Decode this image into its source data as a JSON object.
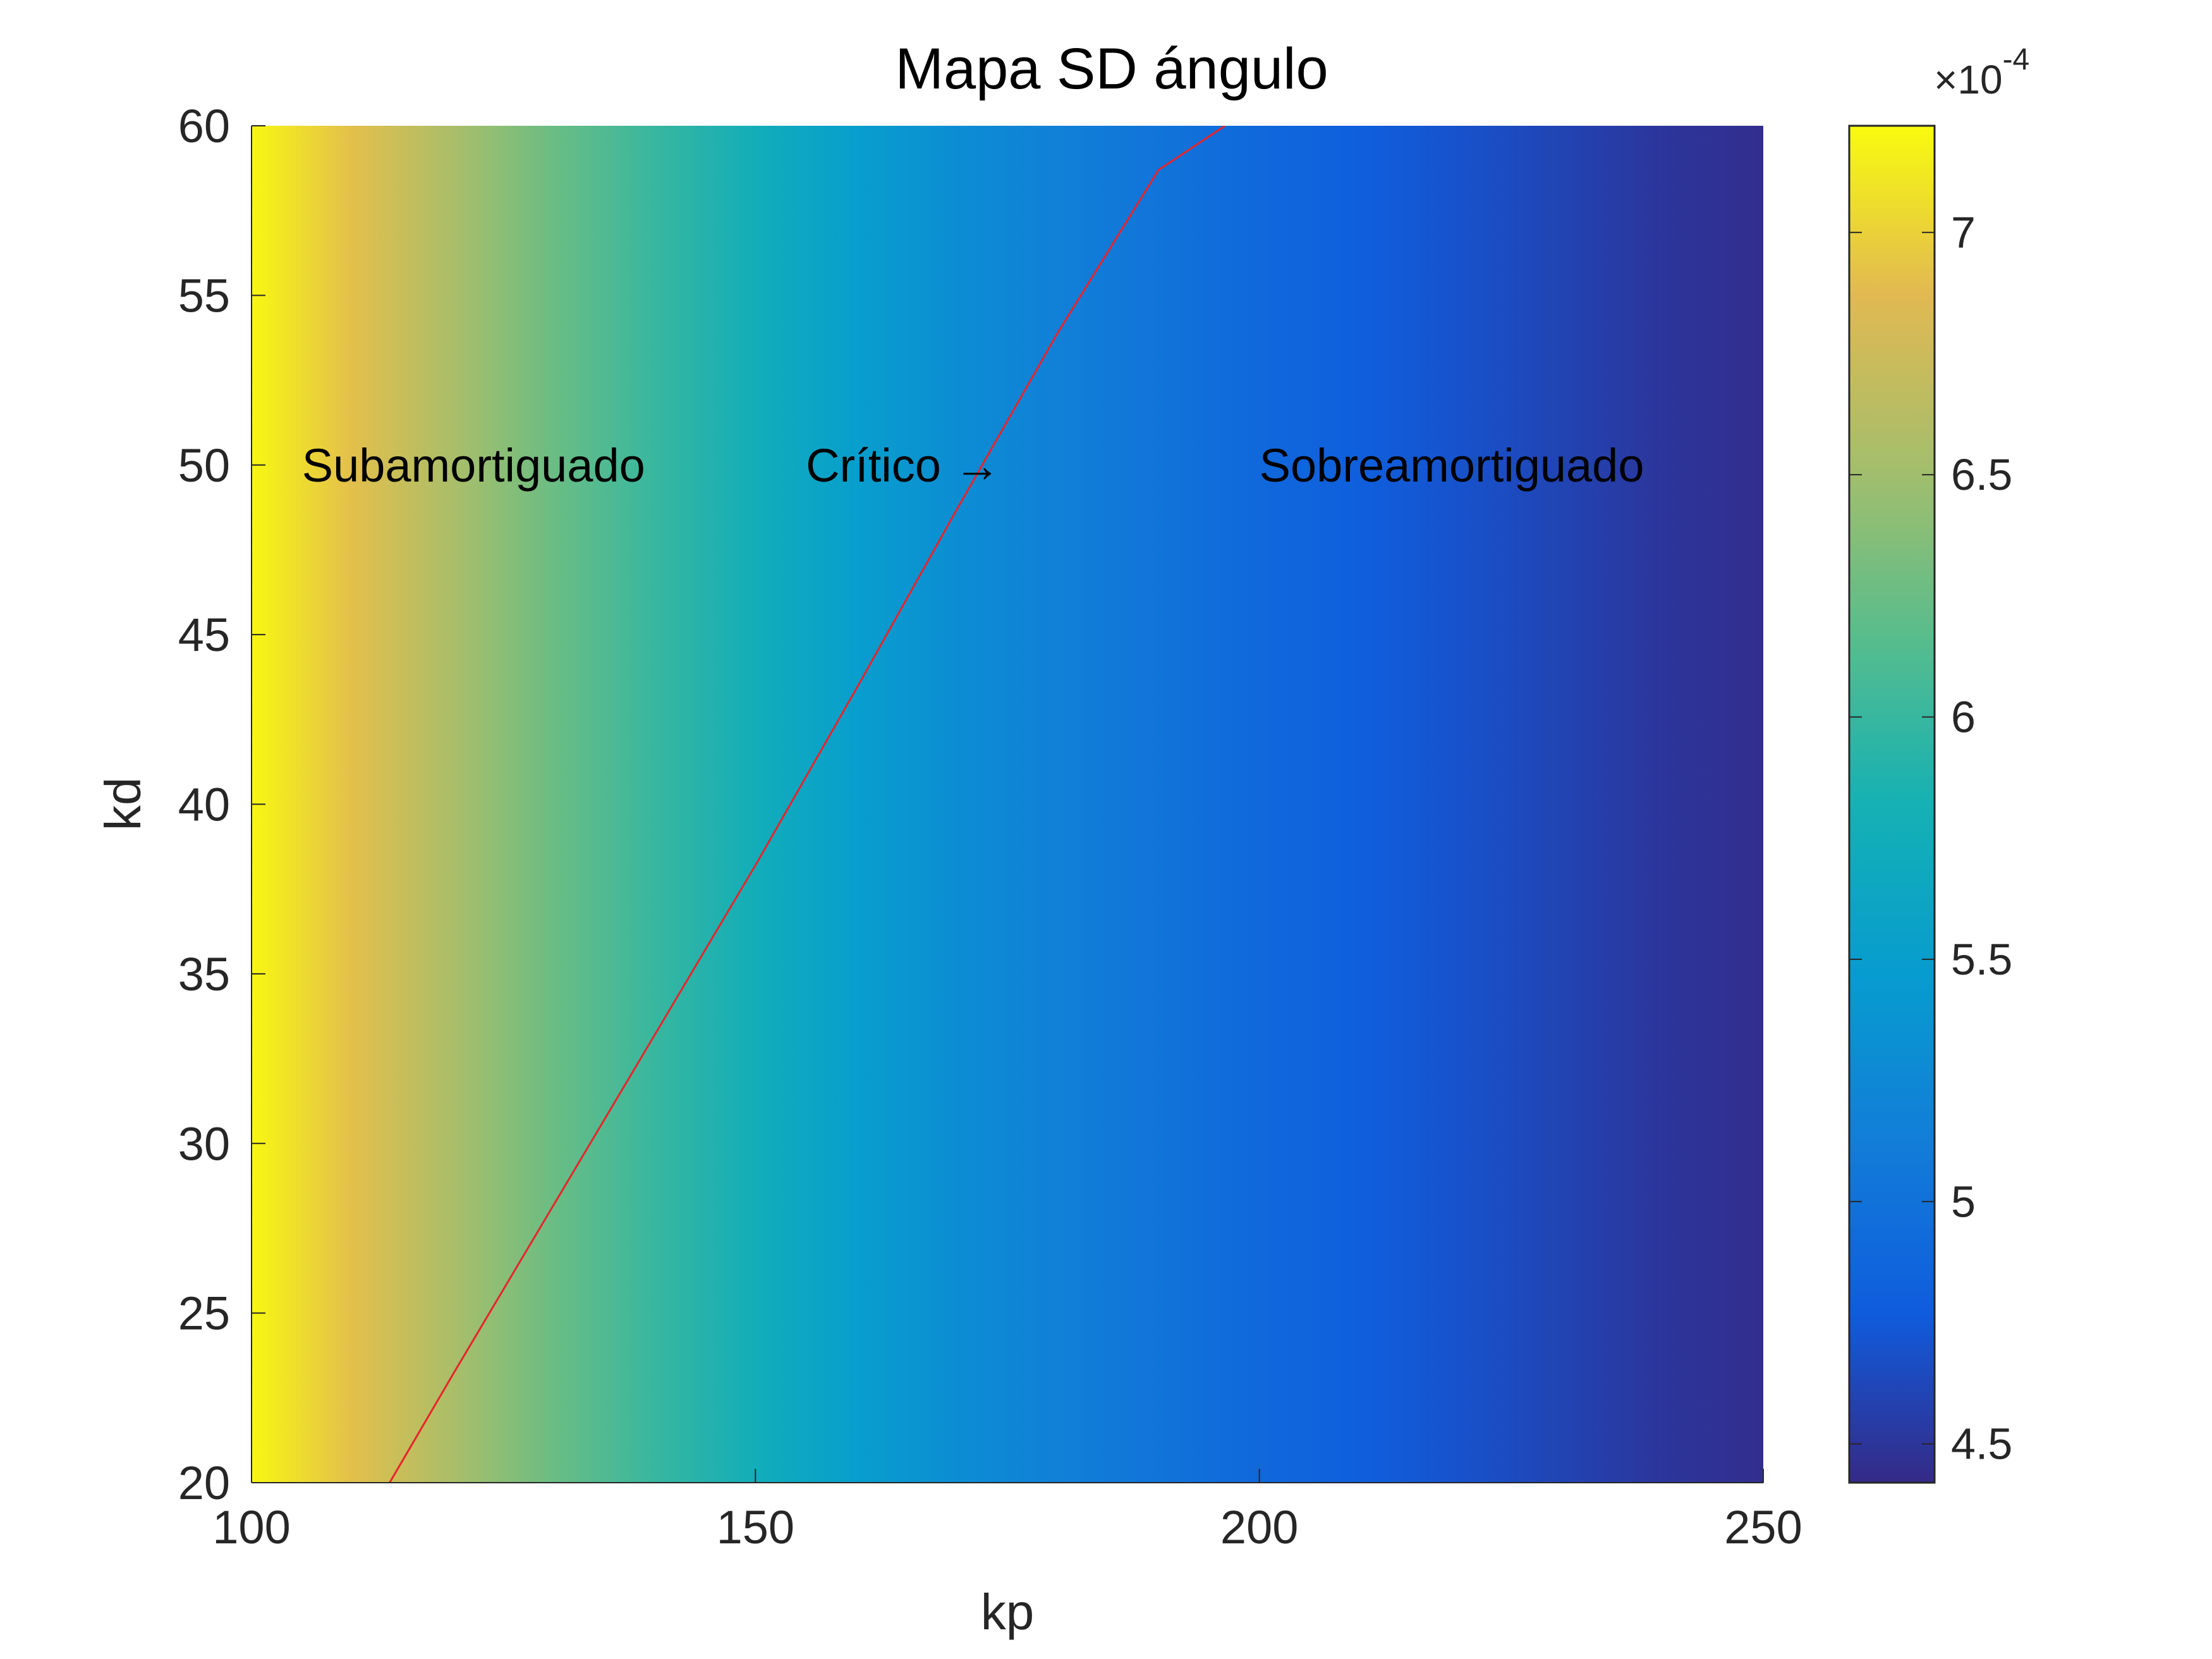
{
  "chart_data": {
    "type": "heatmap",
    "title": "Mapa SD ángulo",
    "xlabel": "kp",
    "ylabel": "kd",
    "xlim": [
      100,
      250
    ],
    "ylim": [
      20,
      60
    ],
    "xticks": [
      100,
      150,
      200,
      250
    ],
    "yticks": [
      20,
      25,
      30,
      35,
      40,
      45,
      50,
      55,
      60
    ],
    "colormap": "parula",
    "colorbar": {
      "range": [
        4.42,
        7.22
      ],
      "ticks": [
        4.5,
        5,
        5.5,
        6,
        6.5,
        7
      ],
      "tick_labels": [
        "4.5",
        "5",
        "5.5",
        "6",
        "6.5",
        "7"
      ],
      "exponent_label": "×10",
      "exponent": "-4",
      "location": "right"
    },
    "heatmap_profile": {
      "description_axis": "kp",
      "kp": [
        100,
        110,
        120,
        130,
        140,
        150,
        160,
        170,
        180,
        190,
        200,
        210,
        220,
        230,
        240,
        250
      ],
      "values_x1e4": [
        7.2,
        6.9,
        6.55,
        6.25,
        6.0,
        5.75,
        5.5,
        5.3,
        5.15,
        5.02,
        4.9,
        4.8,
        4.7,
        4.6,
        4.5,
        4.45
      ]
    },
    "series": [
      {
        "type": "line",
        "color": "#e8242b",
        "x": [
          113.7,
          120,
          130,
          140,
          150,
          160,
          170,
          180,
          190,
          196.6
        ],
        "y": [
          20,
          23.2,
          28.2,
          33.2,
          38.2,
          43.4,
          48.7,
          53.9,
          58.7,
          60
        ]
      }
    ],
    "annotations": [
      {
        "text": "Subamortiguado",
        "x": 105,
        "y": 50
      },
      {
        "text": "Crítico →",
        "x": 155,
        "y": 50
      },
      {
        "text": "Sobreamortiguado",
        "x": 200,
        "y": 50
      }
    ],
    "grid": false,
    "legend": "none",
    "colors": {
      "curve": "#e8242b",
      "axis": "#262626",
      "text": "#000000"
    }
  }
}
